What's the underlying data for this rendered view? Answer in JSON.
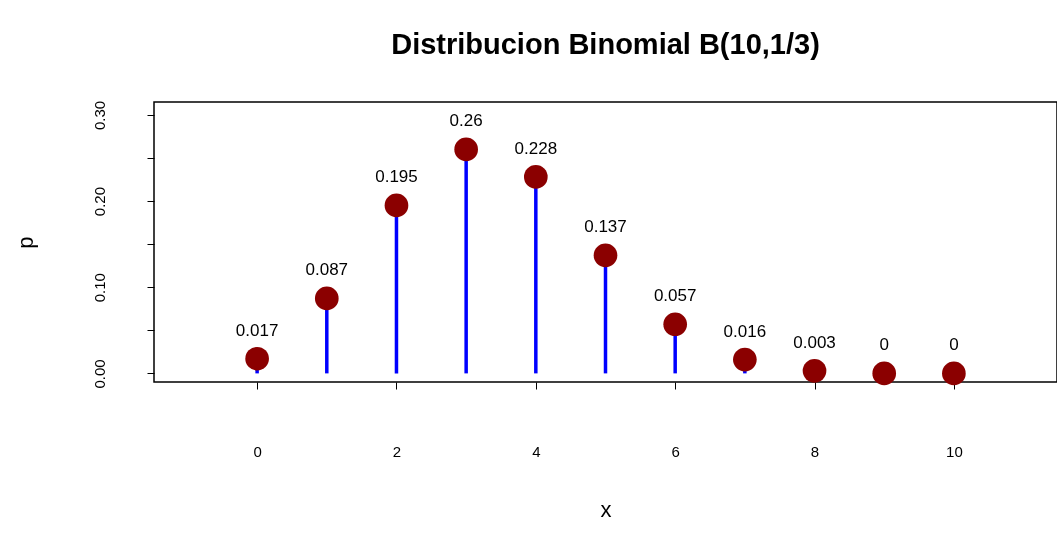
{
  "chart_data": {
    "type": "lollipop",
    "title": "Distribucion Binomial B(10,1/3)",
    "xlabel": "x",
    "ylabel": "p",
    "x": [
      0,
      1,
      2,
      3,
      4,
      5,
      6,
      7,
      8,
      9,
      10
    ],
    "series": [
      {
        "color": "#8b0000",
        "values": [
          0.017,
          0.087,
          0.195,
          0.26,
          0.228,
          0.137,
          0.057,
          0.016,
          0.003,
          0,
          0
        ]
      }
    ],
    "data_labels": true,
    "marker": "circle",
    "grid": false,
    "legend": false,
    "xlim": [
      -1.48,
      11.48
    ],
    "xticks": [
      0,
      2,
      4,
      6,
      8,
      10
    ],
    "ylim": [
      -0.01,
      0.315
    ],
    "yticks": [
      {
        "value": 0.0,
        "label": "0.00"
      },
      {
        "value": 0.05,
        "label": null
      },
      {
        "value": 0.1,
        "label": "0.10"
      },
      {
        "value": 0.15,
        "label": null
      },
      {
        "value": 0.2,
        "label": "0.20"
      },
      {
        "value": 0.25,
        "label": null
      },
      {
        "value": 0.3,
        "label": "0.30"
      }
    ]
  }
}
